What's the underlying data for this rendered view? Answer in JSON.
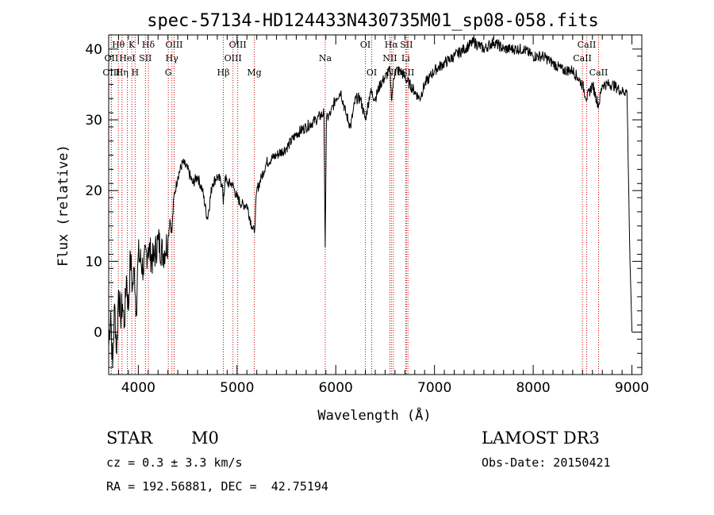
{
  "chart_data": {
    "type": "line",
    "title": "spec-57134-HD124433N430735M01_sp08-058.fits",
    "xlabel": "Wavelength (Å)",
    "ylabel": "Flux (relative)",
    "xlim": [
      3700,
      9100
    ],
    "ylim": [
      -6,
      42
    ],
    "xticks": [
      4000,
      5000,
      6000,
      7000,
      8000,
      9000
    ],
    "yticks": [
      0,
      10,
      20,
      30,
      40
    ],
    "series": [
      {
        "x": [
          3700,
          3720,
          3740,
          3760,
          3780,
          3800,
          3820,
          3840,
          3860,
          3880,
          3900,
          3920,
          3940,
          3960,
          3980,
          4000,
          4050,
          4100,
          4150,
          4200,
          4250,
          4300,
          4320,
          4340,
          4360,
          4400,
          4450,
          4500,
          4550,
          4600,
          4650,
          4700,
          4750,
          4800,
          4850,
          4861,
          4880,
          4900,
          4950,
          5000,
          5050,
          5100,
          5150,
          5175,
          5200,
          5250,
          5300,
          5400,
          5500,
          5600,
          5700,
          5800,
          5880,
          5893,
          5905,
          5950,
          6000,
          6050,
          6100,
          6150,
          6200,
          6250,
          6300,
          6350,
          6400,
          6450,
          6500,
          6550,
          6563,
          6600,
          6650,
          6700,
          6750,
          6800,
          6850,
          6900,
          6950,
          7000,
          7100,
          7200,
          7300,
          7400,
          7500,
          7600,
          7700,
          7800,
          7900,
          8000,
          8100,
          8200,
          8300,
          8400,
          8450,
          8498,
          8542,
          8600,
          8662,
          8700,
          8800,
          8900,
          8950,
          8980,
          9000
        ],
        "y": [
          -2,
          3,
          -5,
          4,
          -3,
          6,
          2,
          4,
          1,
          8,
          3,
          11,
          6,
          9,
          3,
          11,
          9,
          12,
          10,
          13,
          11,
          13,
          16,
          14,
          19,
          22,
          24,
          23,
          21,
          22,
          20,
          16,
          21,
          22,
          21,
          18,
          22,
          21,
          21,
          19,
          18,
          18,
          15,
          14,
          20,
          22,
          24,
          25,
          26,
          28,
          29,
          30,
          31,
          12,
          30,
          31,
          33,
          34,
          31,
          29,
          33,
          33,
          30,
          34,
          33,
          35,
          36,
          37,
          33,
          37,
          37,
          36,
          35,
          34,
          33,
          35,
          36,
          37,
          38,
          39,
          40,
          41,
          40,
          41,
          40,
          40,
          40,
          39,
          39,
          38,
          37,
          37,
          36,
          35,
          33,
          35,
          32,
          35,
          35,
          34,
          34,
          10,
          0
        ]
      }
    ],
    "line_markers": [
      {
        "label": "Hθ",
        "x": 3798,
        "row": 1
      },
      {
        "label": "K",
        "x": 3934,
        "row": 1
      },
      {
        "label": "Hδ",
        "x": 4102,
        "row": 1
      },
      {
        "label": "OIII",
        "x": 4363,
        "row": 1
      },
      {
        "label": "OIII",
        "x": 5007,
        "row": 1
      },
      {
        "label": "OI",
        "x": 6300,
        "row": 1
      },
      {
        "label": "Hα",
        "x": 6563,
        "row": 1
      },
      {
        "label": "SII",
        "x": 6716,
        "row": 1
      },
      {
        "label": "CaII",
        "x": 8542,
        "row": 1
      },
      {
        "label": "OII",
        "x": 3727,
        "row": 2
      },
      {
        "label": "HeI",
        "x": 3889,
        "row": 2
      },
      {
        "label": "SII",
        "x": 4072,
        "row": 2
      },
      {
        "label": "Hγ",
        "x": 4340,
        "row": 2
      },
      {
        "label": "OIII",
        "x": 4959,
        "row": 2
      },
      {
        "label": "Na",
        "x": 5893,
        "row": 2
      },
      {
        "label": "NII",
        "x": 6548,
        "row": 2
      },
      {
        "label": "Li",
        "x": 6708,
        "row": 2
      },
      {
        "label": "CaII",
        "x": 8498,
        "row": 2
      },
      {
        "label": "OIII",
        "x": 3727,
        "row": 3
      },
      {
        "label": "Hη",
        "x": 3835,
        "row": 3
      },
      {
        "label": "H",
        "x": 3968,
        "row": 3
      },
      {
        "label": "G",
        "x": 4304,
        "row": 3
      },
      {
        "label": "Hβ",
        "x": 4861,
        "row": 3
      },
      {
        "label": "Mg",
        "x": 5175,
        "row": 3
      },
      {
        "label": "OI",
        "x": 6364,
        "row": 3
      },
      {
        "label": "NII",
        "x": 6583,
        "row": 3
      },
      {
        "label": "SII",
        "x": 6731,
        "row": 3
      },
      {
        "label": "CaII",
        "x": 8662,
        "row": 3
      }
    ],
    "grid": false,
    "colors": {
      "spectrum": "#000000",
      "markers": "#cc0000"
    }
  },
  "footer": {
    "class_label": "STAR",
    "subclass": "M0",
    "survey": "LAMOST DR3",
    "cz": "cz = 0.3 ± 3.3 km/s",
    "obs_date": "Obs-Date: 20150421",
    "coords": "RA = 192.56881, DEC =  42.75194"
  }
}
